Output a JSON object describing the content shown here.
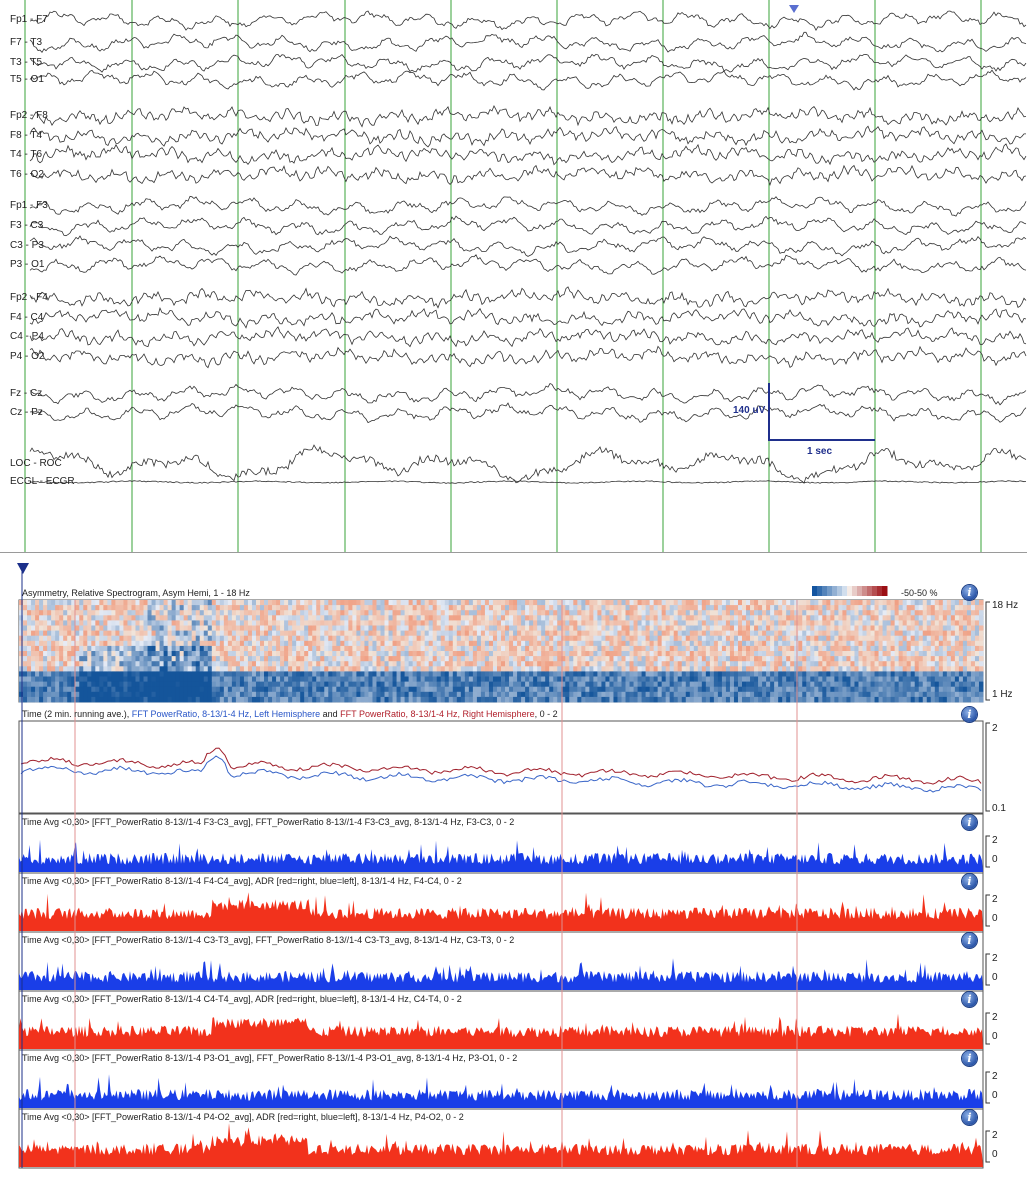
{
  "eeg": {
    "channels": [
      {
        "label": "Fp1 - F7",
        "group": 0
      },
      {
        "label": "F7 - T3",
        "group": 0
      },
      {
        "label": "T3 - T5",
        "group": 0
      },
      {
        "label": "T5 - O1",
        "group": 0
      },
      {
        "label": "Fp2 - F8",
        "group": 1
      },
      {
        "label": "F8 - T4",
        "group": 1
      },
      {
        "label": "T4 - T6",
        "group": 1
      },
      {
        "label": "T6 - O2",
        "group": 1
      },
      {
        "label": "Fp1 - F3",
        "group": 2
      },
      {
        "label": "F3 - C3",
        "group": 2
      },
      {
        "label": "C3 - P3",
        "group": 2
      },
      {
        "label": "P3 - O1",
        "group": 2
      },
      {
        "label": "Fp2 - F4",
        "group": 3
      },
      {
        "label": "F4 - C4",
        "group": 3
      },
      {
        "label": "C4 - P4",
        "group": 3
      },
      {
        "label": "P4 - O2",
        "group": 3
      },
      {
        "label": "Fz - Cz",
        "group": 4
      },
      {
        "label": "Cz - Pz",
        "group": 4
      },
      {
        "label": "LOC - ROC",
        "group": 5
      },
      {
        "label": "ECGL - ECGR",
        "group": 5
      }
    ],
    "calibration": {
      "amplitude": "140 uV",
      "time": "1 sec"
    },
    "gridline_color": "#3aa33a",
    "trace_color": "#333333"
  },
  "trends": {
    "spectrogram": {
      "title": "Asymmetry, Relative Spectrogram, Asym Hemi, 1 - 18 Hz",
      "colorbar_label": "-50-50 %",
      "top_label": "18 Hz",
      "bottom_label": "1 Hz"
    },
    "power_ratio": {
      "title_prefix": "Time (2 min. running ave.), ",
      "title_left": "FFT PowerRatio, 8-13/1-4 Hz, Left Hemisphere",
      "title_and": " and ",
      "title_right": "FFT PowerRatio, 8-13/1-4 Hz, Right Hemisphere",
      "title_range": ",  0 - 2",
      "top_label": "2",
      "bottom_label": "0.1",
      "left_color": "#3a66c8",
      "right_color": "#a0202c"
    },
    "rows": [
      {
        "title": "Time Avg <0,30> [FFT_PowerRatio 8-13//1-4 F3-C3_avg], FFT_PowerRatio 8-13//1-4 F3-C3_avg, 8-13/1-4 Hz, F3-C3, 0 - 2",
        "color": "#1a3ee8",
        "top_label": "2",
        "bottom_label": "0"
      },
      {
        "title": "Time Avg <0,30> [FFT_PowerRatio 8-13//1-4 F4-C4_avg], ADR [red=right, blue=left], 8-13/1-4 Hz, F4-C4, 0 - 2",
        "color": "#f2321c",
        "top_label": "2",
        "bottom_label": "0"
      },
      {
        "title": "Time Avg <0,30> [FFT_PowerRatio 8-13//1-4 C3-T3_avg], FFT_PowerRatio 8-13//1-4 C3-T3_avg, 8-13/1-4 Hz, C3-T3, 0 - 2",
        "color": "#1a3ee8",
        "top_label": "2",
        "bottom_label": "0"
      },
      {
        "title": "Time Avg <0,30> [FFT_PowerRatio 8-13//1-4 C4-T4_avg], ADR [red=right, blue=left], 8-13/1-4 Hz, C4-T4, 0 - 2",
        "color": "#f2321c",
        "top_label": "2",
        "bottom_label": "0"
      },
      {
        "title": "Time Avg <0,30> [FFT_PowerRatio 8-13//1-4 P3-O1_avg], FFT_PowerRatio 8-13//1-4 P3-O1_avg, 8-13/1-4 Hz, P3-O1, 0 - 2",
        "color": "#1a3ee8",
        "top_label": "2",
        "bottom_label": "0"
      },
      {
        "title": "Time Avg <0,30> [FFT_PowerRatio 8-13//1-4 P4-O2_avg], ADR [red=right, blue=left], 8-13/1-4 Hz, P4-O2, 0 - 2",
        "color": "#f2321c",
        "top_label": "2",
        "bottom_label": "0"
      }
    ],
    "info_icon": "info-icon",
    "marker_color": "#e09090"
  }
}
